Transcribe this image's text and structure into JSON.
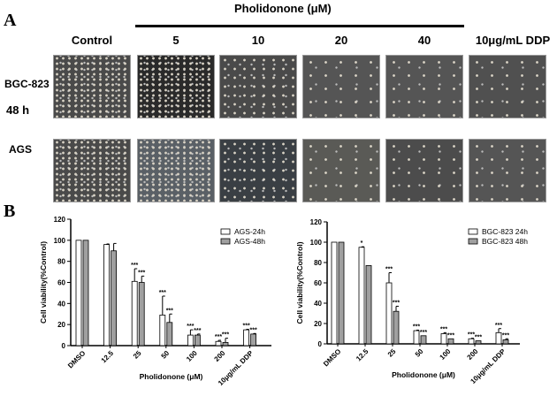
{
  "panel_a": {
    "label": "A",
    "treatment_header": "Pholidonone (μM)",
    "columns": [
      "Control",
      "5",
      "10",
      "20",
      "40",
      "10μg/mL DDP"
    ],
    "rows": [
      {
        "label": "BGC-823",
        "sub": "48 h"
      },
      {
        "label": "AGS"
      }
    ]
  },
  "panel_b": {
    "label": "B"
  },
  "chart_data": [
    {
      "type": "bar",
      "title": "",
      "xlabel": "Pholidonone (μM)",
      "ylabel": "Cell viability(%Control)",
      "ylim": [
        0,
        120
      ],
      "yticks": [
        "0",
        "20",
        "40",
        "60",
        "80",
        "100",
        "120"
      ],
      "categories": [
        "DMSO",
        "12.5",
        "25",
        "50",
        "100",
        "200",
        "10μg/mL DDP"
      ],
      "legend": "top-right",
      "series": [
        {
          "name": "AGS-24h",
          "color": "#ffffff",
          "values": [
            100,
            96,
            61,
            29,
            10,
            4,
            15
          ],
          "errors": [
            0,
            0.5,
            12,
            18,
            5,
            1,
            0.5
          ],
          "significance": [
            "",
            "",
            "***",
            "***",
            "***",
            "***",
            "***"
          ]
        },
        {
          "name": "AGS-48h",
          "color": "#a0a0a0",
          "values": [
            100,
            90,
            60,
            22,
            10,
            3,
            11
          ],
          "errors": [
            0,
            7,
            6,
            8,
            1,
            4,
            0.5
          ],
          "significance": [
            "",
            "",
            "***",
            "***",
            "***",
            "***",
            "***"
          ]
        }
      ]
    },
    {
      "type": "bar",
      "title": "",
      "xlabel": "Pholidonone (μM)",
      "ylabel": "Cell viability(%Control)",
      "ylim": [
        0,
        120
      ],
      "yticks": [
        "0",
        "20",
        "40",
        "60",
        "80",
        "100",
        "120"
      ],
      "categories": [
        "DMSO",
        "12.5",
        "25",
        "50",
        "100",
        "200",
        "10μg/mL DDP"
      ],
      "legend": "top-right",
      "series": [
        {
          "name": "BGC-823 24h",
          "color": "#ffffff",
          "values": [
            100,
            95,
            60,
            13,
            10,
            5,
            11
          ],
          "errors": [
            0,
            0.5,
            10,
            0.5,
            1,
            0.5,
            4
          ],
          "significance": [
            "",
            "*",
            "***",
            "***",
            "***",
            "***",
            "***"
          ]
        },
        {
          "name": "BGC-823 48h",
          "color": "#a0a0a0",
          "values": [
            100,
            77,
            32,
            8,
            5,
            3,
            4
          ],
          "errors": [
            0,
            0,
            5,
            0,
            0,
            0,
            1
          ],
          "significance": [
            "",
            "",
            "***",
            "***",
            "***",
            "***",
            "***"
          ]
        }
      ]
    }
  ]
}
